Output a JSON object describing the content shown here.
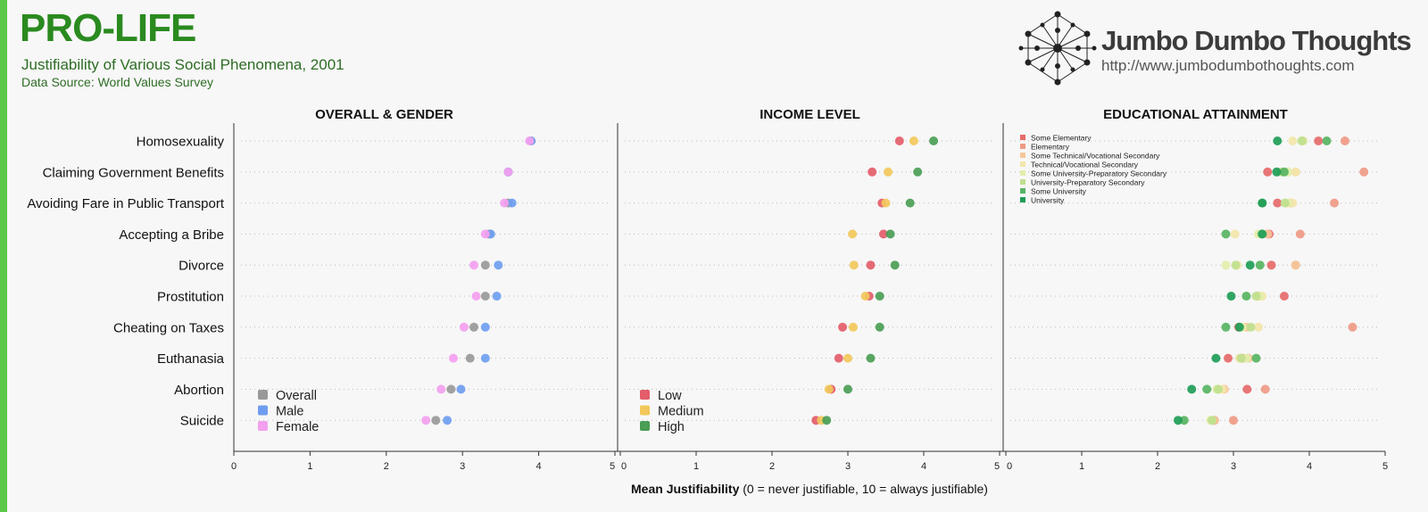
{
  "header": {
    "title": "PRO-LIFE",
    "subtitle": "Justifiability of Various Social Phenomena, 2001",
    "source": "Data Source: World Values Survey"
  },
  "logo": {
    "name": "Jumbo Dumbo Thoughts",
    "url": "http://www.jumbodumbothoughts.com",
    "icon": "network-dots-icon"
  },
  "chart_data": {
    "type": "scatter",
    "categories": [
      "Homosexuality",
      "Claiming Government Benefits",
      "Avoiding Fare in Public Transport",
      "Accepting a Bribe",
      "Divorce",
      "Prostitution",
      "Cheating on Taxes",
      "Euthanasia",
      "Abortion",
      "Suicide"
    ],
    "xlim": [
      0,
      5
    ],
    "xticks": [
      0,
      1,
      2,
      3,
      4,
      5
    ],
    "xlabel_bold": "Mean Justifiability",
    "xlabel_rest": " (0 = never justifiable, 10 = always justifiable)",
    "grid": "dotted horizontal",
    "panels": [
      {
        "title": "OVERALL & GENDER",
        "legend_position": "bottom-left",
        "series": [
          {
            "name": "Overall",
            "color": "#999999",
            "values": [
              3.9,
              3.6,
              3.6,
              3.35,
              3.3,
              3.3,
              3.15,
              3.1,
              2.85,
              2.65
            ]
          },
          {
            "name": "Male",
            "color": "#6f9ef0",
            "values": [
              3.9,
              3.6,
              3.65,
              3.37,
              3.47,
              3.45,
              3.3,
              3.3,
              2.98,
              2.8
            ]
          },
          {
            "name": "Female",
            "color": "#f3a0ef",
            "values": [
              3.88,
              3.6,
              3.55,
              3.3,
              3.15,
              3.18,
              3.02,
              2.88,
              2.72,
              2.52
            ]
          }
        ]
      },
      {
        "title": "INCOME LEVEL",
        "legend_position": "bottom-left",
        "series": [
          {
            "name": "Low",
            "color": "#e35d6a",
            "values": [
              3.68,
              3.32,
              3.45,
              3.47,
              3.3,
              3.28,
              2.93,
              2.88,
              2.78,
              2.58
            ]
          },
          {
            "name": "Medium",
            "color": "#f2c85b",
            "values": [
              3.87,
              3.53,
              3.5,
              3.06,
              3.08,
              3.23,
              3.07,
              3.0,
              2.75,
              2.65
            ]
          },
          {
            "name": "High",
            "color": "#4a9e55",
            "values": [
              4.13,
              3.92,
              3.82,
              3.56,
              3.62,
              3.42,
              3.42,
              3.3,
              3.0,
              2.72
            ]
          }
        ]
      },
      {
        "title": "EDUCATIONAL ATTAINMENT",
        "legend_position": "top-left",
        "series": [
          {
            "name": "Some Elementary",
            "color": "#e66a6a",
            "values": [
              4.12,
              3.45,
              3.58,
              3.47,
              3.5,
              3.67,
              3.07,
              2.93,
              3.18,
              2.75
            ]
          },
          {
            "name": "Elementary",
            "color": "#ef9a86",
            "values": [
              4.47,
              4.72,
              4.33,
              3.88,
              3.82,
              3.33,
              4.57,
              3.12,
              3.42,
              3.0
            ]
          },
          {
            "name": "Some Technical/Vocational Secondary",
            "color": "#f6c79a",
            "values": [
              3.92,
              3.82,
              3.75,
              3.45,
              3.82,
              3.33,
              3.17,
              3.2,
              2.88,
              2.75
            ]
          },
          {
            "name": "Technical/Vocational Secondary",
            "color": "#f3e6aa",
            "values": [
              3.78,
              3.82,
              3.78,
              3.02,
              3.05,
              3.38,
              3.33,
              3.08,
              2.85,
              2.72
            ]
          },
          {
            "name": "Some University-Preparatory Secondary",
            "color": "#e2eeaa",
            "values": [
              3.92,
              3.72,
              3.72,
              3.33,
              2.9,
              3.35,
              3.12,
              3.17,
              2.78,
              2.7
            ]
          },
          {
            "name": "University-Preparatory Secondary",
            "color": "#bfdf8e",
            "values": [
              3.9,
              3.62,
              3.68,
              3.37,
              3.03,
              3.3,
              3.23,
              3.1,
              2.8,
              2.72
            ]
          },
          {
            "name": "Some University",
            "color": "#57b462",
            "values": [
              4.23,
              3.67,
              3.38,
              2.9,
              3.35,
              3.17,
              2.9,
              3.3,
              2.65,
              2.35
            ]
          },
          {
            "name": "University",
            "color": "#1f9d57",
            "values": [
              3.58,
              3.57,
              3.38,
              3.38,
              3.22,
              2.97,
              3.08,
              2.77,
              2.45,
              2.27
            ]
          }
        ]
      }
    ]
  }
}
